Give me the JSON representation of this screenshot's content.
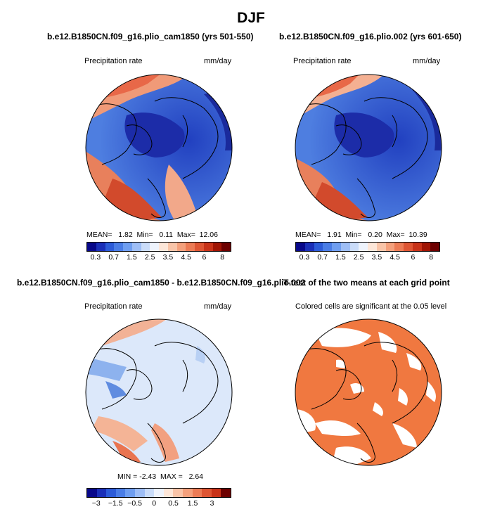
{
  "title": "DJF",
  "chart_data": [
    {
      "type": "heatmap",
      "title": "b.e12.B1850CN.f09_g16.plio_cam1850 (yrs 501-550)",
      "left_label": "Precipitation rate",
      "right_label": "mm/day",
      "stats": {
        "mean_label": "MEAN=",
        "mean": "1.82",
        "min_label": "Min=",
        "min": "0.11",
        "max_label": "Max=",
        "max": "12.06"
      },
      "colorbar": {
        "ticks": [
          "0.3",
          "0.7",
          "1.5",
          "2.5",
          "3.5",
          "4.5",
          "6",
          "8"
        ],
        "colors": [
          "#08088a",
          "#1a2fb8",
          "#2c5bd8",
          "#4a7de6",
          "#6f9ef0",
          "#9ebef6",
          "#cadcf9",
          "#eef3fc",
          "#fde6d8",
          "#f9c4a8",
          "#f4a07c",
          "#ec7b55",
          "#de5533",
          "#c83218",
          "#a01404",
          "#6d0000"
        ]
      }
    },
    {
      "type": "heatmap",
      "title": "b.e12.B1850CN.f09_g16.plio.002 (yrs 601-650)",
      "left_label": "Precipitation rate",
      "right_label": "mm/day",
      "stats": {
        "mean_label": "MEAN=",
        "mean": "1.91",
        "min_label": "Min=",
        "min": "0.20",
        "max_label": "Max=",
        "max": "10.39"
      },
      "colorbar": {
        "ticks": [
          "0.3",
          "0.7",
          "1.5",
          "2.5",
          "3.5",
          "4.5",
          "6",
          "8"
        ],
        "colors": [
          "#08088a",
          "#1a2fb8",
          "#2c5bd8",
          "#4a7de6",
          "#6f9ef0",
          "#9ebef6",
          "#cadcf9",
          "#eef3fc",
          "#fde6d8",
          "#f9c4a8",
          "#f4a07c",
          "#ec7b55",
          "#de5533",
          "#c83218",
          "#a01404",
          "#6d0000"
        ]
      }
    },
    {
      "type": "heatmap",
      "title": "b.e12.B1850CN.f09_g16.plio_cam1850 - b.e12.B1850CN.f09_g16.plio.002",
      "left_label": "Precipitation rate",
      "right_label": "mm/day",
      "stats": {
        "min_label": "MIN = ",
        "min": "-2.43",
        "max_label": "MAX = ",
        "max": "2.64"
      },
      "colorbar": {
        "ticks": [
          "−3",
          "−1.5",
          "−0.5",
          "0",
          "0.5",
          "1.5",
          "3"
        ],
        "colors": [
          "#08088a",
          "#1a2fb8",
          "#2c5bd8",
          "#4a7de6",
          "#6f9ef0",
          "#9ebef6",
          "#cadcf9",
          "#eef3fc",
          "#fde6d8",
          "#f9c4a8",
          "#f4a07c",
          "#ec7b55",
          "#de5533",
          "#c83218",
          "#6d0000"
        ]
      }
    },
    {
      "type": "heatmap",
      "title": "T-test of the two means at each grid point",
      "subtitle": "Colored cells are significant at the 0.05 level",
      "significant_color": "#f07840"
    }
  ]
}
